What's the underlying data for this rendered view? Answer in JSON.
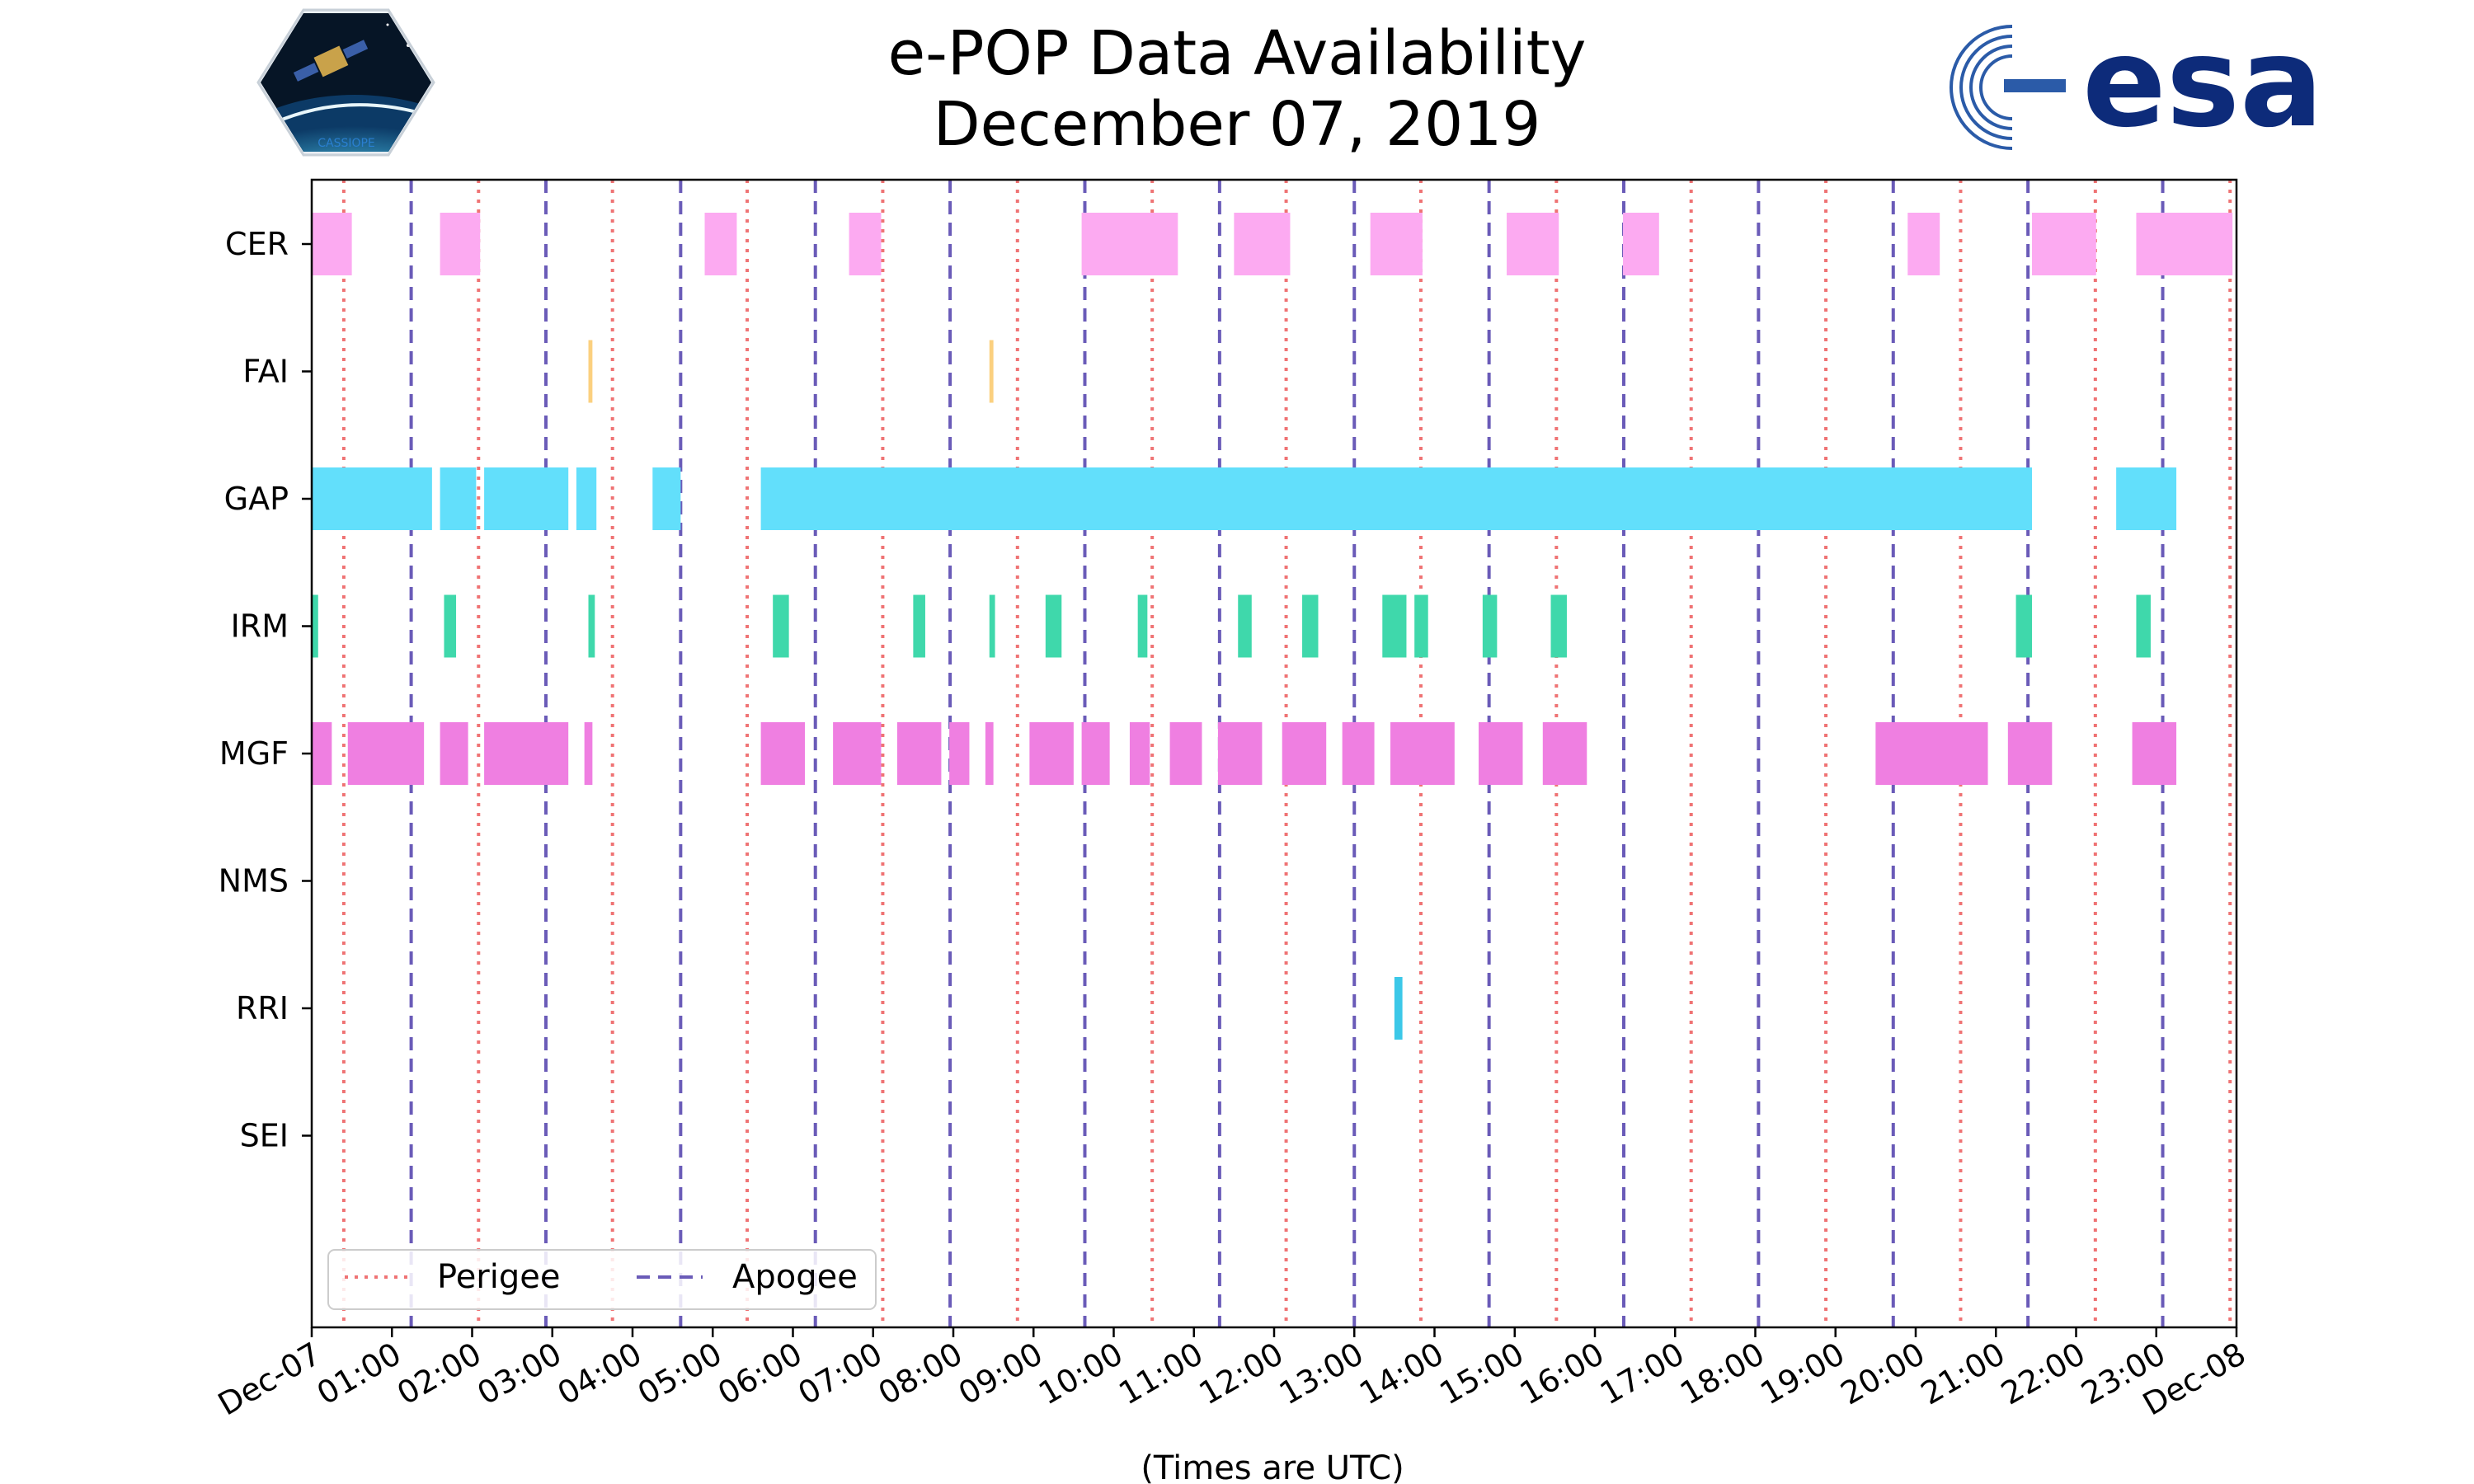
{
  "chart_data": {
    "type": "timeline",
    "title_line1": "e-POP Data Availability",
    "title_line2": "December 07, 2019",
    "xlabel": "(Times are UTC)",
    "x_range_hours": [
      0,
      24
    ],
    "x_tick_labels": [
      "Dec-07",
      "01:00",
      "02:00",
      "03:00",
      "04:00",
      "05:00",
      "06:00",
      "07:00",
      "08:00",
      "09:00",
      "10:00",
      "11:00",
      "12:00",
      "13:00",
      "14:00",
      "15:00",
      "16:00",
      "17:00",
      "18:00",
      "19:00",
      "20:00",
      "21:00",
      "22:00",
      "23:00",
      "Dec-08"
    ],
    "instruments": [
      "CER",
      "FAI",
      "GAP",
      "IRM",
      "MGF",
      "NMS",
      "RRI",
      "SEI"
    ],
    "legend": {
      "perigee_label": "Perigee",
      "apogee_label": "Apogee"
    },
    "perigee_hours": [
      0.4,
      2.08,
      3.75,
      5.43,
      7.12,
      8.8,
      10.48,
      12.15,
      13.83,
      15.52,
      17.2,
      18.88,
      20.56,
      22.24,
      23.92
    ],
    "apogee_hours": [
      1.24,
      2.92,
      4.6,
      6.28,
      7.96,
      9.64,
      11.32,
      13.0,
      14.68,
      16.36,
      18.04,
      19.72,
      21.4,
      23.08
    ],
    "colors": {
      "CER": "#fcaaf1",
      "FAI": "#fbd07f",
      "GAP": "#62dffb",
      "IRM": "#3fd8ab",
      "MGF": "#ef7fe1",
      "RRI": "#3cc8e8",
      "perigee": "#ef7374",
      "apogee": "#6a5bb8"
    },
    "segments": {
      "CER": [
        [
          0.0,
          0.5
        ],
        [
          1.6,
          2.1
        ],
        [
          4.9,
          5.3
        ],
        [
          6.7,
          7.1
        ],
        [
          9.6,
          10.8
        ],
        [
          11.5,
          12.2
        ],
        [
          13.2,
          13.85
        ],
        [
          14.9,
          15.55
        ],
        [
          16.35,
          16.8
        ],
        [
          19.9,
          20.3
        ],
        [
          21.45,
          22.25
        ],
        [
          22.75,
          23.95
        ]
      ],
      "FAI": [
        [
          3.45,
          3.5
        ],
        [
          8.45,
          8.5
        ]
      ],
      "GAP": [
        [
          0.0,
          1.5
        ],
        [
          1.6,
          2.05
        ],
        [
          2.15,
          3.2
        ],
        [
          3.3,
          3.55
        ],
        [
          4.25,
          4.6
        ],
        [
          5.6,
          21.45
        ],
        [
          22.5,
          23.25
        ]
      ],
      "IRM": [
        [
          0.0,
          0.08
        ],
        [
          1.65,
          1.8
        ],
        [
          3.45,
          3.53
        ],
        [
          5.75,
          5.95
        ],
        [
          7.5,
          7.65
        ],
        [
          8.45,
          8.52
        ],
        [
          9.15,
          9.35
        ],
        [
          10.3,
          10.42
        ],
        [
          11.55,
          11.72
        ],
        [
          12.35,
          12.55
        ],
        [
          13.35,
          13.65
        ],
        [
          13.75,
          13.92
        ],
        [
          14.6,
          14.78
        ],
        [
          15.45,
          15.65
        ],
        [
          21.25,
          21.45
        ],
        [
          22.75,
          22.93
        ]
      ],
      "MGF": [
        [
          0.0,
          0.25
        ],
        [
          0.45,
          1.4
        ],
        [
          1.6,
          1.95
        ],
        [
          2.15,
          3.2
        ],
        [
          3.4,
          3.5
        ],
        [
          5.6,
          6.15
        ],
        [
          6.5,
          7.1
        ],
        [
          7.3,
          7.85
        ],
        [
          7.95,
          8.2
        ],
        [
          8.4,
          8.5
        ],
        [
          8.95,
          9.5
        ],
        [
          9.6,
          9.95
        ],
        [
          10.2,
          10.45
        ],
        [
          10.7,
          11.1
        ],
        [
          11.3,
          11.85
        ],
        [
          12.1,
          12.65
        ],
        [
          12.85,
          13.25
        ],
        [
          13.45,
          14.25
        ],
        [
          14.55,
          15.1
        ],
        [
          15.35,
          15.9
        ],
        [
          19.5,
          20.9
        ],
        [
          21.15,
          21.7
        ],
        [
          22.7,
          23.25
        ]
      ],
      "NMS": [],
      "RRI": [
        [
          13.5,
          13.6
        ]
      ],
      "SEI": []
    }
  },
  "logos": {
    "mission_logo_text": "CASSIOPE",
    "agency_logo_text": "esa"
  }
}
